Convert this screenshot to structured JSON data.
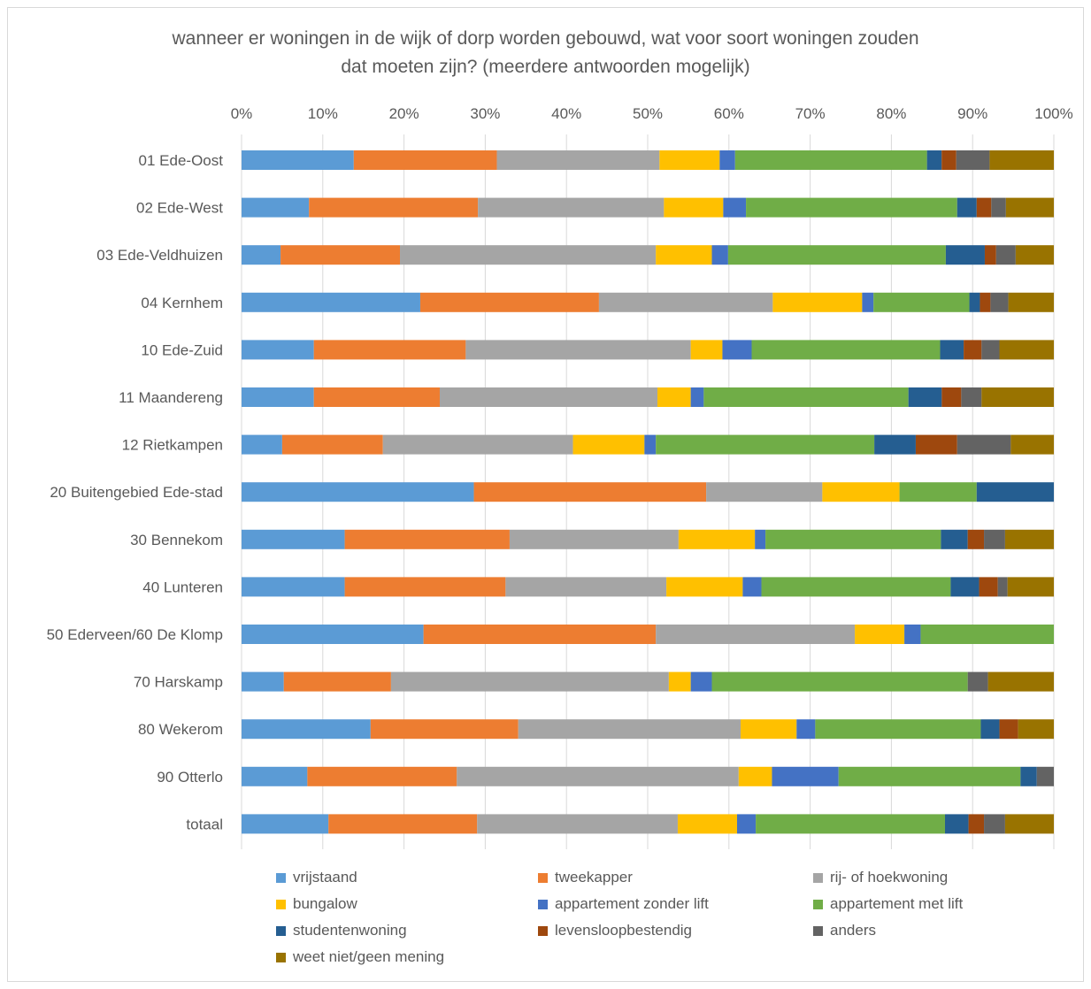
{
  "chart_data": {
    "type": "bar",
    "orientation": "horizontal",
    "stacked": "percent",
    "title": "wanneer er woningen in de wijk of dorp worden gebouwd, wat voor soort woningen zouden dat moeten zijn? (meerdere antwoorden mogelijk)",
    "title_lines": [
      "wanneer er woningen in de wijk of dorp worden gebouwd, wat voor soort woningen zouden",
      "dat moeten zijn? (meerdere antwoorden mogelijk)"
    ],
    "xlim": [
      0,
      100
    ],
    "x_ticks": [
      "0%",
      "10%",
      "20%",
      "30%",
      "40%",
      "50%",
      "60%",
      "70%",
      "80%",
      "90%",
      "100%"
    ],
    "x_axis_position": "top",
    "grid": true,
    "legend_position": "bottom",
    "categories": [
      "01 Ede-Oost",
      "02 Ede-West",
      "03 Ede-Veldhuizen",
      "04 Kernhem",
      "10 Ede-Zuid",
      "11 Maandereng",
      "12 Rietkampen",
      "20 Buitengebied Ede-stad",
      "30 Bennekom",
      "40 Lunteren",
      "50 Ederveen/60 De Klomp",
      "70 Harskamp",
      "80 Wekerom",
      "90 Otterlo",
      "totaal"
    ],
    "series": [
      {
        "name": "vrijstaand",
        "color": "#5B9BD5",
        "values": [
          13.8,
          8.3,
          4.8,
          22.0,
          8.9,
          8.9,
          5.0,
          28.6,
          12.7,
          12.7,
          22.4,
          5.2,
          15.9,
          8.1,
          10.7
        ]
      },
      {
        "name": "tweekapper",
        "color": "#ED7D31",
        "values": [
          17.6,
          20.8,
          14.7,
          22.0,
          18.7,
          15.5,
          12.4,
          28.6,
          20.3,
          19.8,
          28.6,
          13.2,
          18.2,
          18.4,
          18.3
        ]
      },
      {
        "name": "rij- of hoekwoning",
        "color": "#A5A5A5",
        "values": [
          20.0,
          22.9,
          31.5,
          21.4,
          27.7,
          26.8,
          23.4,
          14.3,
          20.8,
          19.8,
          24.5,
          34.2,
          27.4,
          34.7,
          24.7
        ]
      },
      {
        "name": "bungalow",
        "color": "#FFC000",
        "values": [
          7.4,
          7.3,
          6.9,
          11.0,
          3.9,
          4.1,
          8.8,
          9.5,
          9.4,
          9.4,
          6.1,
          2.7,
          6.9,
          4.1,
          7.3
        ]
      },
      {
        "name": "appartement zonder lift",
        "color": "#4472C4",
        "values": [
          1.9,
          2.8,
          2.0,
          1.4,
          3.6,
          1.6,
          1.4,
          0,
          1.3,
          2.3,
          2.0,
          2.6,
          2.3,
          8.2,
          2.3
        ]
      },
      {
        "name": "appartement met lift",
        "color": "#70AD47",
        "values": [
          23.6,
          26.0,
          26.8,
          11.8,
          23.2,
          25.2,
          26.9,
          9.5,
          21.6,
          23.3,
          16.4,
          31.5,
          20.4,
          22.4,
          23.3
        ]
      },
      {
        "name": "studentenwoning",
        "color": "#255E91",
        "values": [
          1.8,
          2.4,
          4.8,
          1.3,
          2.9,
          4.1,
          5.1,
          9.5,
          3.3,
          3.5,
          0,
          0,
          2.3,
          2.0,
          2.9
        ]
      },
      {
        "name": "levensloopbestendig",
        "color": "#9E480E",
        "values": [
          1.8,
          1.8,
          1.4,
          1.3,
          2.2,
          2.4,
          5.1,
          0,
          2.0,
          2.3,
          0,
          0,
          2.3,
          0,
          1.9
        ]
      },
      {
        "name": "anders",
        "color": "#636363",
        "values": [
          4.1,
          1.8,
          2.4,
          2.2,
          2.2,
          2.5,
          6.6,
          0,
          2.6,
          1.2,
          0,
          2.5,
          0,
          2.1,
          2.6
        ]
      },
      {
        "name": "weet niet/geen mening",
        "color": "#997300",
        "values": [
          7.9,
          5.9,
          4.7,
          5.6,
          6.7,
          8.9,
          5.3,
          0,
          6.0,
          5.7,
          0,
          8.1,
          4.4,
          0,
          6.0
        ]
      }
    ]
  }
}
